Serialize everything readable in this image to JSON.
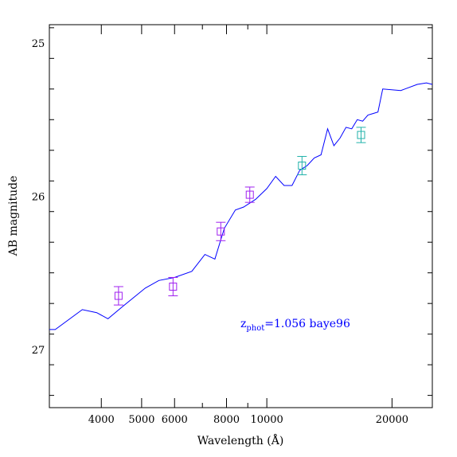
{
  "chart_data": {
    "type": "line",
    "title": "",
    "xlabel": "Wavelength (Å)",
    "ylabel": "AB magnitude",
    "x_scale": "log",
    "xlim": [
      3000,
      25000
    ],
    "ylim": [
      27.38,
      24.88
    ],
    "y_inverted": true,
    "x_ticks": [
      {
        "value": 4000,
        "label": "4000"
      },
      {
        "value": 5000,
        "label": "5000"
      },
      {
        "value": 6000,
        "label": "6000"
      },
      {
        "value": 8000,
        "label": "8000"
      },
      {
        "value": 10000,
        "label": "10000"
      },
      {
        "value": 20000,
        "label": "20000"
      }
    ],
    "y_ticks": [
      {
        "value": 25,
        "label": "25"
      },
      {
        "value": 26,
        "label": "26"
      },
      {
        "value": 27,
        "label": "27"
      }
    ],
    "grid": false,
    "annotation": {
      "prefix": "z",
      "subscript": "phot",
      "text": "=1.056 baye96",
      "color": "#0000ff"
    },
    "series": [
      {
        "type": "line",
        "color": "#0000ff",
        "x": [
          3000,
          3100,
          3600,
          3900,
          4150,
          4500,
          5100,
          5500,
          6000,
          6600,
          7100,
          7500,
          7900,
          8400,
          8800,
          9400,
          10000,
          10500,
          11000,
          11500,
          12000,
          12500,
          13000,
          13500,
          14000,
          14500,
          15000,
          15500,
          16000,
          16500,
          17000,
          17500,
          18000,
          18500,
          19000,
          21000,
          23000,
          24200,
          25000
        ],
        "y": [
          26.87,
          26.87,
          26.74,
          26.76,
          26.8,
          26.72,
          26.6,
          26.55,
          26.53,
          26.49,
          26.38,
          26.41,
          26.21,
          26.09,
          26.07,
          26.02,
          25.95,
          25.87,
          25.93,
          25.93,
          25.83,
          25.8,
          25.75,
          25.73,
          25.56,
          25.67,
          25.62,
          25.55,
          25.56,
          25.5,
          25.51,
          25.47,
          25.46,
          25.45,
          25.3,
          25.31,
          25.27,
          25.26,
          25.27
        ]
      },
      {
        "type": "scatter",
        "marker": "square",
        "color": "#a020f0",
        "x": [
          4400,
          5950,
          7750,
          9100
        ],
        "y": [
          26.65,
          26.59,
          26.23,
          25.99
        ],
        "err": [
          0.06,
          0.06,
          0.06,
          0.05
        ]
      },
      {
        "type": "scatter",
        "marker": "square",
        "color": "#20b2aa",
        "x": [
          12150,
          16850
        ],
        "y": [
          25.8,
          25.6
        ],
        "err": [
          0.06,
          0.05
        ]
      }
    ]
  }
}
